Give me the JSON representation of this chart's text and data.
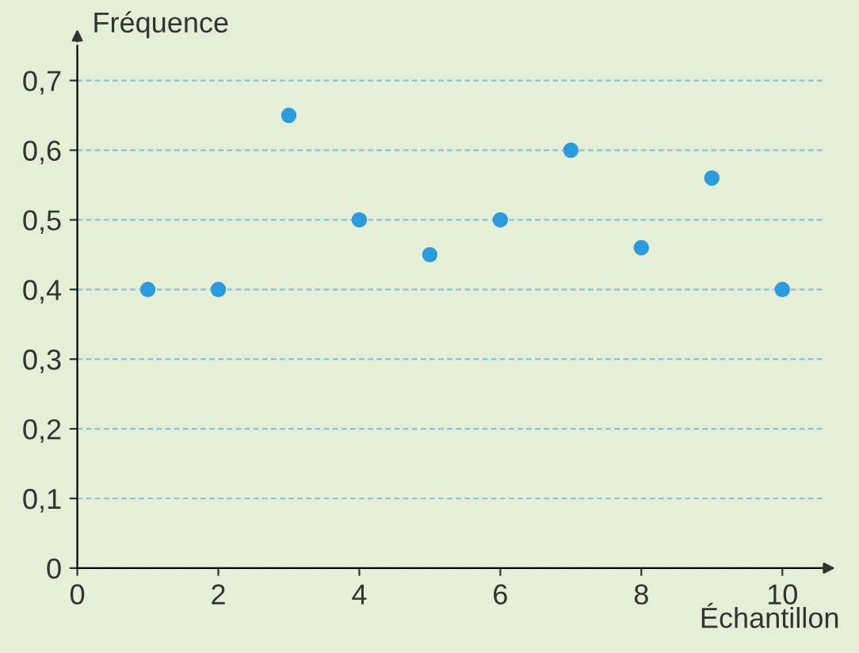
{
  "chart_data": {
    "type": "scatter",
    "xlabel": "Échantillon",
    "ylabel": "Fréquence",
    "x": [
      1,
      2,
      3,
      4,
      5,
      6,
      7,
      8,
      9,
      10
    ],
    "series": [
      {
        "color": "#2b9be0",
        "values": [
          0.4,
          0.4,
          0.65,
          0.5,
          0.45,
          0.5,
          0.6,
          0.46,
          0.56,
          0.4
        ]
      }
    ],
    "xlim": [
      0,
      10.6
    ],
    "ylim": [
      0,
      0.75
    ],
    "xticks": [
      0,
      2,
      4,
      6,
      8,
      10
    ],
    "yticks": [
      0,
      {
        "value": 0.1,
        "label": "0,1"
      },
      {
        "value": 0.2,
        "label": "0,2"
      },
      {
        "value": 0.3,
        "label": "0,3"
      },
      {
        "value": 0.4,
        "label": "0,4"
      },
      {
        "value": 0.5,
        "label": "0,5"
      },
      {
        "value": 0.6,
        "label": "0,6"
      },
      {
        "value": 0.7,
        "label": "0,7"
      }
    ],
    "grid": "y",
    "marker": "circle",
    "legend": false
  }
}
